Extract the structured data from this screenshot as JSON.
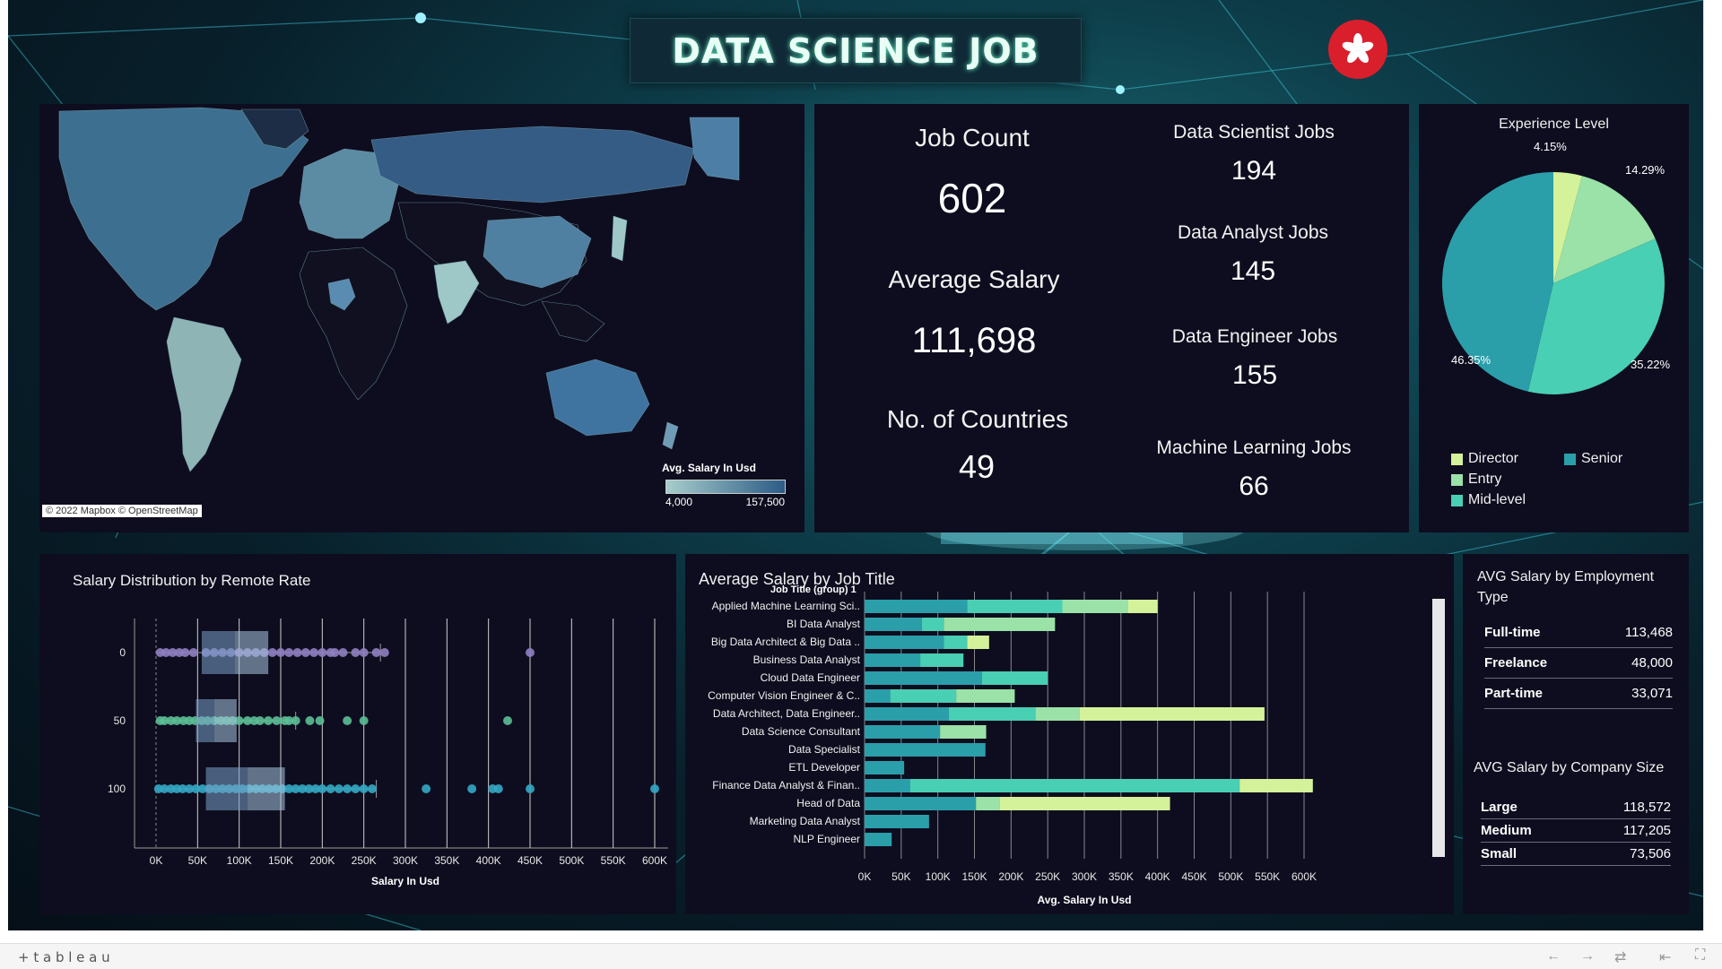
{
  "header": {
    "title": "DATA SCIENCE JOB"
  },
  "map": {
    "attribution": "© 2022 Mapbox  © OpenStreetMap",
    "legend_title": "Avg. Salary In Usd",
    "legend_min": "4,000",
    "legend_max": "157,500",
    "colors": {
      "low": "#9ec7c7",
      "high": "#2c5b86"
    }
  },
  "kpis": {
    "job_count_label": "Job Count",
    "job_count_value": "602",
    "avg_salary_label": "Average Salary",
    "avg_salary_value": "111,698",
    "countries_label": "No. of Countries",
    "countries_value": "49",
    "ds_label": "Data Scientist Jobs",
    "ds_value": "194",
    "da_label": "Data Analyst Jobs",
    "da_value": "145",
    "de_label": "Data Engineer Jobs",
    "de_value": "155",
    "ml_label": "Machine Learning Jobs",
    "ml_value": "66"
  },
  "experience": {
    "title": "Experience Level",
    "legend": [
      {
        "name": "Director",
        "color": "#d4f29a"
      },
      {
        "name": "Senior",
        "color": "#2a9faa"
      },
      {
        "name": "Entry",
        "color": "#9ae2a8"
      },
      {
        "name": "Mid-level",
        "color": "#49cfb3"
      }
    ]
  },
  "employment": {
    "title": "AVG Salary by Employment Type",
    "rows": [
      {
        "name": "Full-time",
        "value": "113,468"
      },
      {
        "name": "Freelance",
        "value": "48,000"
      },
      {
        "name": "Part-time",
        "value": "33,071"
      }
    ]
  },
  "company": {
    "title": "AVG Salary by Company Size",
    "rows": [
      {
        "name": "Large",
        "value": "118,572"
      },
      {
        "name": "Medium",
        "value": "117,205"
      },
      {
        "name": "Small",
        "value": "73,506"
      }
    ]
  },
  "chart_data": [
    {
      "type": "pie",
      "title": "Experience Level",
      "slices": [
        {
          "label": "Director",
          "value": 4.15,
          "display": "4.15%",
          "color": "#d4f29a"
        },
        {
          "label": "Entry",
          "value": 14.29,
          "display": "14.29%",
          "color": "#9ae2a8"
        },
        {
          "label": "Mid-level",
          "value": 35.22,
          "display": "35.22%",
          "color": "#49cfb3"
        },
        {
          "label": "Senior",
          "value": 46.35,
          "display": "46.35%",
          "color": "#2a9faa"
        }
      ]
    },
    {
      "type": "scatter",
      "title": "Salary Distribution by Remote Rate",
      "xlabel": "Salary In Usd",
      "ylabel": "",
      "xlim": [
        0,
        600000
      ],
      "xticks": [
        0,
        50000,
        100000,
        150000,
        200000,
        250000,
        300000,
        350000,
        400000,
        450000,
        500000,
        550000,
        600000
      ],
      "xtick_labels": [
        "0K",
        "50K",
        "100K",
        "150K",
        "200K",
        "250K",
        "300K",
        "350K",
        "400K",
        "450K",
        "500K",
        "550K",
        "600K"
      ],
      "categories": [
        "0",
        "50",
        "100"
      ],
      "boxes": [
        {
          "category": "0",
          "q1": 55000,
          "median": 95000,
          "q3": 135000,
          "whisker_high": 270000,
          "color": "#8f7fc0",
          "points": [
            5000,
            12000,
            20000,
            28000,
            35000,
            45000,
            60000,
            70000,
            80000,
            90000,
            100000,
            110000,
            120000,
            130000,
            140000,
            150000,
            160000,
            170000,
            180000,
            190000,
            200000,
            210000,
            215000,
            225000,
            240000,
            250000,
            265000,
            275000,
            450000
          ]
        },
        {
          "category": "50",
          "q1": 48000,
          "median": 70000,
          "q3": 97000,
          "whisker_high": 168000,
          "color": "#5bbf95",
          "points": [
            5000,
            10000,
            18000,
            25000,
            33000,
            40000,
            47000,
            55000,
            62000,
            70000,
            78000,
            85000,
            92000,
            100000,
            110000,
            118000,
            125000,
            135000,
            145000,
            155000,
            160000,
            168000,
            185000,
            197000,
            230000,
            250000,
            423000
          ]
        },
        {
          "category": "100",
          "q1": 60000,
          "median": 110000,
          "q3": 155000,
          "whisker_high": 265000,
          "color": "#34a9c4",
          "points": [
            3000,
            10000,
            18000,
            25000,
            32000,
            40000,
            48000,
            56000,
            64000,
            72000,
            80000,
            88000,
            96000,
            104000,
            112000,
            120000,
            128000,
            136000,
            144000,
            152000,
            160000,
            168000,
            176000,
            184000,
            192000,
            200000,
            210000,
            220000,
            230000,
            240000,
            250000,
            260000,
            325000,
            380000,
            405000,
            412000,
            450000,
            600000
          ]
        }
      ]
    },
    {
      "type": "bar",
      "title": "Average Salary by Job Title",
      "ylabel": "Job Title (group) 1",
      "xlabel": "Avg. Salary In Usd",
      "xlim": [
        0,
        600000
      ],
      "xtick_labels": [
        "0K",
        "50K",
        "100K",
        "150K",
        "200K",
        "250K",
        "300K",
        "350K",
        "400K",
        "450K",
        "500K",
        "550K",
        "600K"
      ],
      "segment_colors": [
        "#2a9faa",
        "#49cfb3",
        "#9ae2a8",
        "#d4f29a"
      ],
      "categories": [
        "Applied Machine Learning Sci..",
        "BI Data Analyst",
        "Big Data Architect & Big Data ..",
        "Business Data Analyst",
        "Cloud Data Engineer",
        "Computer Vision Engineer & C..",
        "Data Architect, Data Engineer..",
        "Data Science Consultant",
        "Data Specialist",
        "ETL Developer",
        "Finance Data Analyst & Finan..",
        "Head of Data",
        "Marketing Data Analyst",
        "NLP Engineer"
      ],
      "stacks": [
        [
          140000,
          130000,
          90000,
          40000
        ],
        [
          78000,
          30000,
          152000,
          0
        ],
        [
          108000,
          32000,
          0,
          30000
        ],
        [
          76000,
          59000,
          0,
          0
        ],
        [
          160000,
          90000,
          0,
          0
        ],
        [
          35000,
          90000,
          80000,
          0
        ],
        [
          115000,
          118000,
          60000,
          253000
        ],
        [
          103000,
          0,
          63000,
          0
        ],
        [
          165000,
          0,
          0,
          0
        ],
        [
          54000,
          0,
          0,
          0
        ],
        [
          62000,
          450000,
          0,
          100000
        ],
        [
          152000,
          0,
          32000,
          233000
        ],
        [
          88000,
          0,
          0,
          0
        ],
        [
          37000,
          0,
          0,
          0
        ]
      ]
    }
  ],
  "footer": {
    "brand": "+ t a b l e a u"
  }
}
